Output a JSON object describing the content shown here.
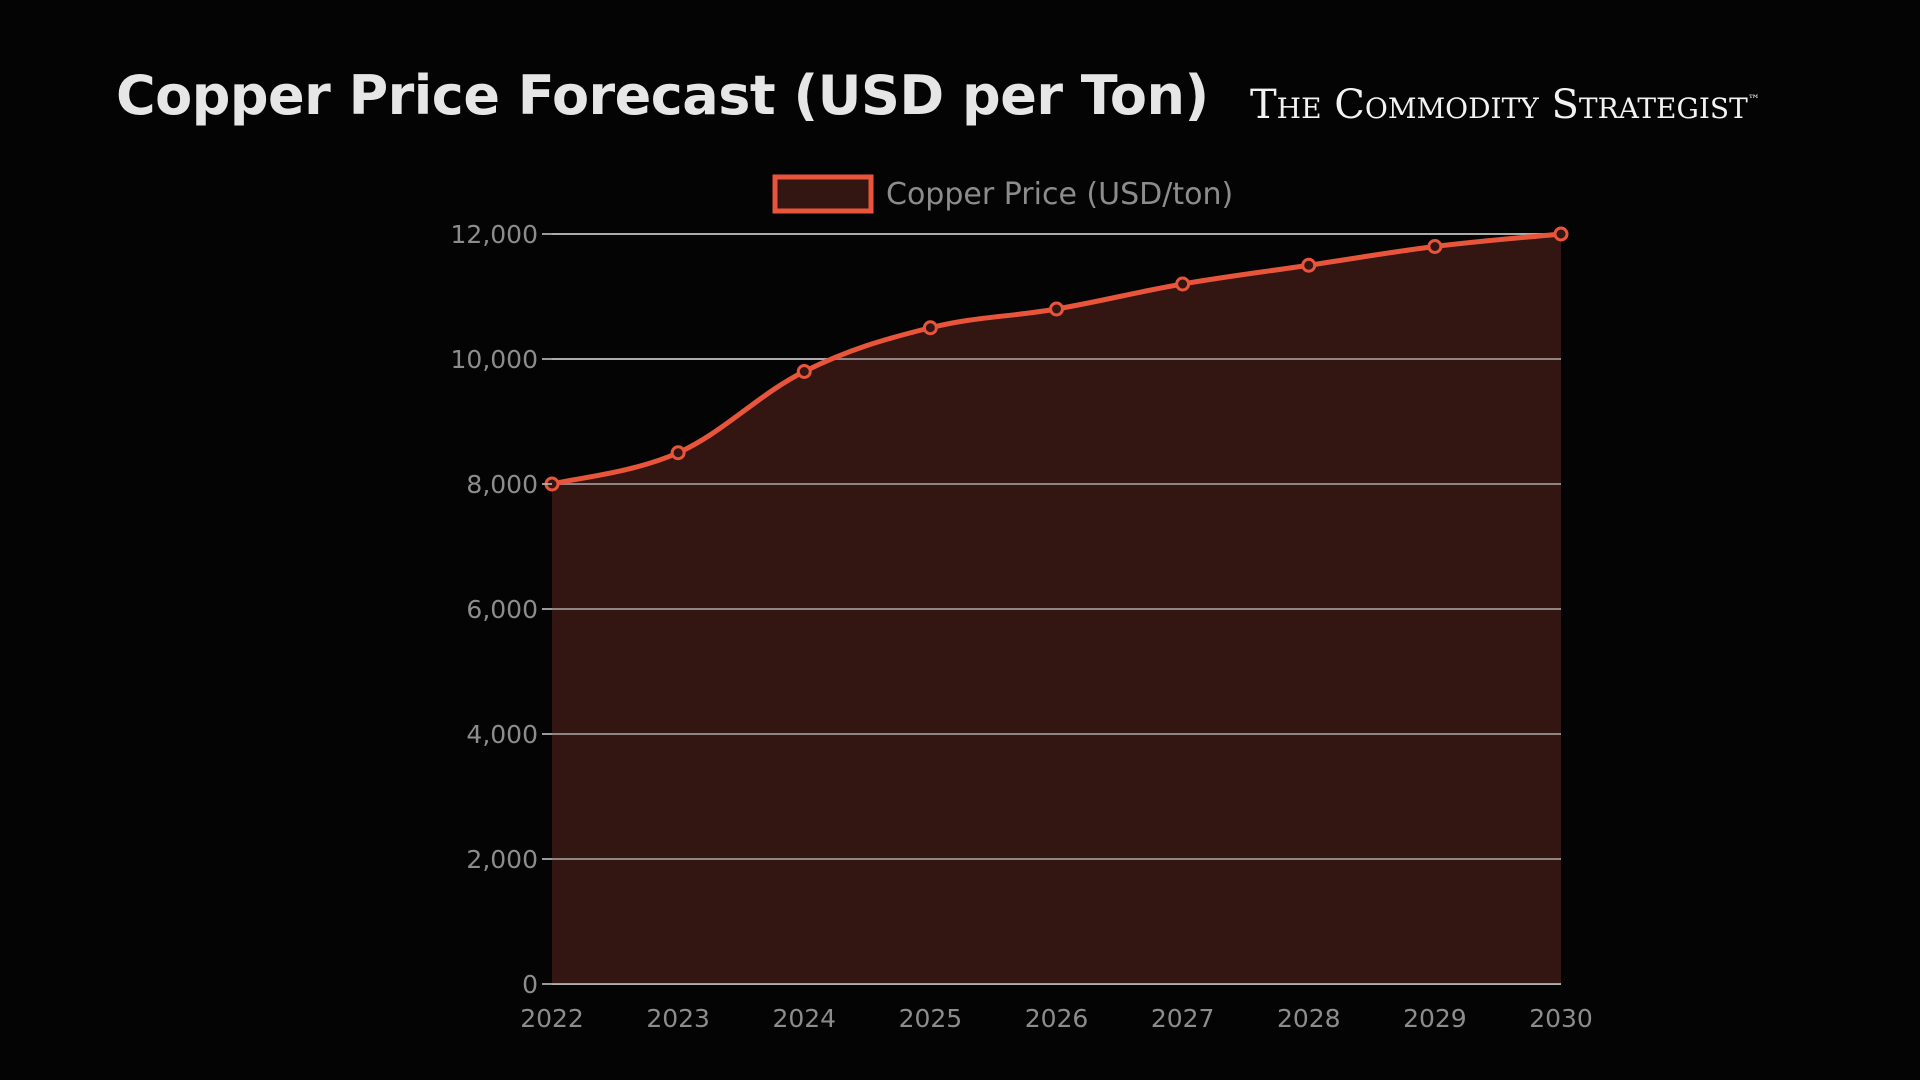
{
  "header": {
    "title": "Copper Price Forecast (USD per Ton)",
    "brand": "The Commodity  Strategist",
    "brand_mark": "™"
  },
  "colors": {
    "background": "#040404",
    "line": "#e8553a",
    "fill": "#331611",
    "grid": "#b5b5b5",
    "tick_text": "#8c8c8c"
  },
  "chart_data": {
    "type": "area",
    "title": "Copper Price Forecast (USD per Ton)",
    "xlabel": "",
    "ylabel": "",
    "categories": [
      "2022",
      "2023",
      "2024",
      "2025",
      "2026",
      "2027",
      "2028",
      "2029",
      "2030"
    ],
    "series": [
      {
        "name": "Copper Price (USD/ton)",
        "values": [
          8000,
          8500,
          9800,
          10500,
          10800,
          11200,
          11500,
          11800,
          12000
        ]
      }
    ],
    "ylim": [
      0,
      12000
    ],
    "yticks": [
      0,
      2000,
      4000,
      6000,
      8000,
      10000,
      12000
    ],
    "ytick_labels": [
      "0",
      "2,000",
      "4,000",
      "6,000",
      "8,000",
      "10,000",
      "12,000"
    ],
    "grid": true,
    "legend": "top-center"
  }
}
